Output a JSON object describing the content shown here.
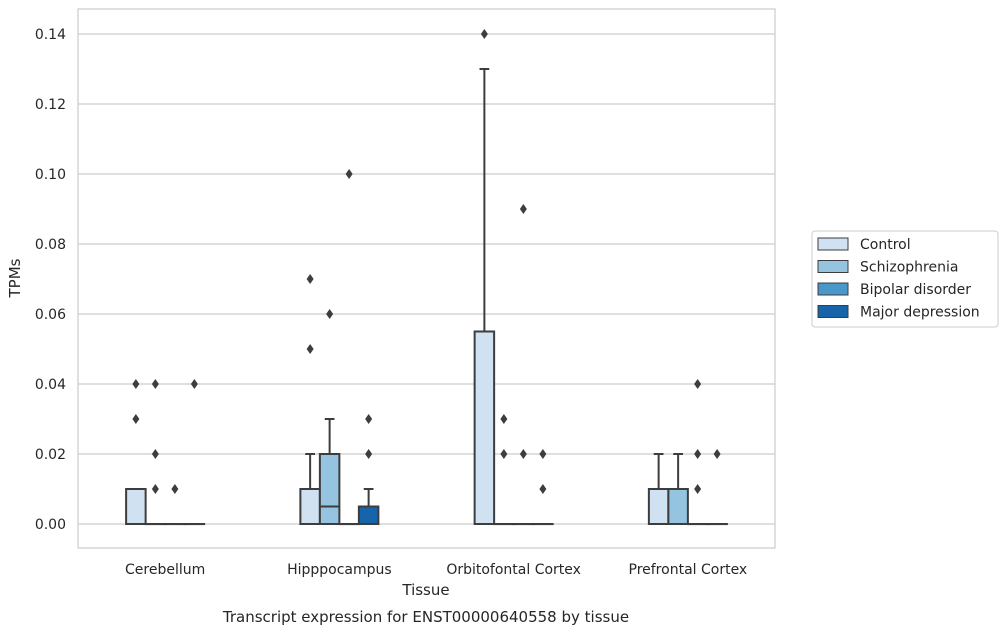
{
  "chart_data": {
    "type": "boxplot",
    "title": "Transcript expression for ENST00000640558 by tissue",
    "xlabel": "Tissue",
    "ylabel": "TPMs",
    "ylim": [
      -0.007,
      0.147
    ],
    "yticks": [
      "0.00",
      "0.02",
      "0.04",
      "0.06",
      "0.08",
      "0.10",
      "0.12",
      "0.14"
    ],
    "ytick_values": [
      0,
      0.02,
      0.04,
      0.06,
      0.08,
      0.1,
      0.12,
      0.14
    ],
    "grid": "horizontal",
    "legend_position": "right",
    "categories": [
      "Cerebellum",
      "Hipppocampus",
      "Orbitofontal Cortex",
      "Prefrontal Cortex"
    ],
    "series": [
      {
        "name": "Control",
        "color": "#d0e1f2"
      },
      {
        "name": "Schizophrenia",
        "color": "#94c4df"
      },
      {
        "name": "Bipolar disorder",
        "color": "#4a98c9"
      },
      {
        "name": "Major depression",
        "color": "#1764ab"
      }
    ],
    "boxes": [
      [
        {
          "q1": 0,
          "median": 0,
          "q3": 0.01,
          "whislo": 0,
          "whishi": 0.01,
          "fliers": [
            0.03,
            0.04
          ]
        },
        {
          "q1": 0,
          "median": 0,
          "q3": 0,
          "whislo": 0,
          "whishi": 0,
          "fliers": [
            0.01,
            0.02,
            0.04
          ]
        },
        {
          "q1": 0,
          "median": 0,
          "q3": 0,
          "whislo": 0,
          "whishi": 0,
          "fliers": [
            0.01
          ]
        },
        {
          "q1": 0,
          "median": 0,
          "q3": 0,
          "whislo": 0,
          "whishi": 0,
          "fliers": [
            0.04
          ]
        }
      ],
      [
        {
          "q1": 0,
          "median": 0,
          "q3": 0.01,
          "whislo": 0,
          "whishi": 0.02,
          "fliers": [
            0.05,
            0.07
          ]
        },
        {
          "q1": 0,
          "median": 0.005,
          "q3": 0.02,
          "whislo": 0,
          "whishi": 0.03,
          "fliers": [
            0.06
          ]
        },
        {
          "q1": 0,
          "median": 0,
          "q3": 0,
          "whislo": 0,
          "whishi": 0,
          "fliers": [
            0.1
          ]
        },
        {
          "q1": 0,
          "median": 0,
          "q3": 0.005,
          "whislo": 0,
          "whishi": 0.01,
          "fliers": [
            0.02,
            0.03
          ]
        }
      ],
      [
        {
          "q1": 0,
          "median": 0,
          "q3": 0.055,
          "whislo": 0,
          "whishi": 0.13,
          "fliers": [
            0.14
          ]
        },
        {
          "q1": 0,
          "median": 0,
          "q3": 0,
          "whislo": 0,
          "whishi": 0,
          "fliers": [
            0.02,
            0.03
          ]
        },
        {
          "q1": 0,
          "median": 0,
          "q3": 0,
          "whislo": 0,
          "whishi": 0,
          "fliers": [
            0.02,
            0.09
          ]
        },
        {
          "q1": 0,
          "median": 0,
          "q3": 0,
          "whislo": 0,
          "whishi": 0,
          "fliers": [
            0.01,
            0.02
          ]
        }
      ],
      [
        {
          "q1": 0,
          "median": 0,
          "q3": 0.01,
          "whislo": 0,
          "whishi": 0.02,
          "fliers": []
        },
        {
          "q1": 0,
          "median": 0,
          "q3": 0.01,
          "whislo": 0,
          "whishi": 0.02,
          "fliers": []
        },
        {
          "q1": 0,
          "median": 0,
          "q3": 0,
          "whislo": 0,
          "whishi": 0,
          "fliers": [
            0.01,
            0.02,
            0.04
          ]
        },
        {
          "q1": 0,
          "median": 0,
          "q3": 0,
          "whislo": 0,
          "whishi": 0,
          "fliers": [
            0.02
          ]
        }
      ]
    ]
  }
}
